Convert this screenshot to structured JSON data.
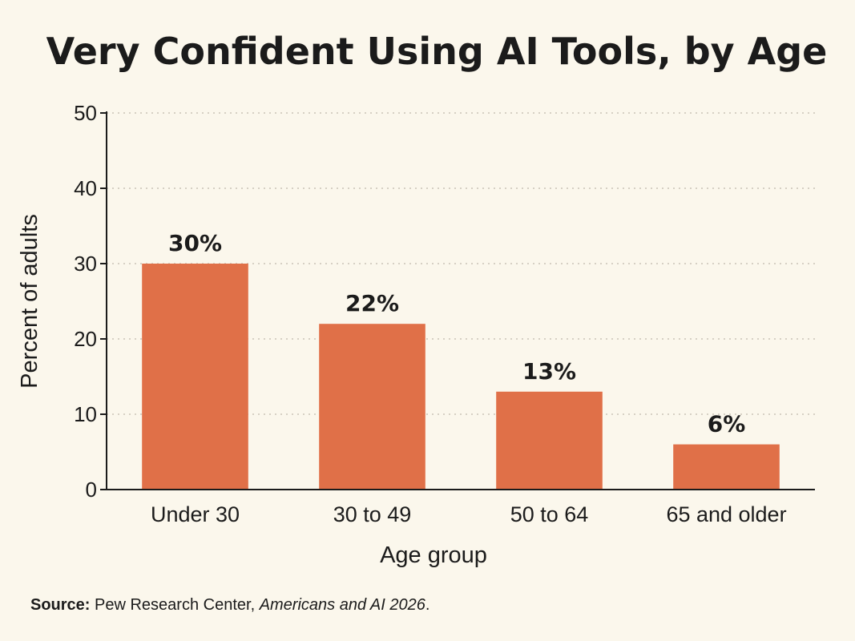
{
  "chart_data": {
    "type": "bar",
    "title": "Very Confident Using AI Tools, by Age",
    "xlabel": "Age group",
    "ylabel": "Percent of adults",
    "categories": [
      "Under 30",
      "30 to 49",
      "50 to 64",
      "65 and older"
    ],
    "values": [
      30,
      22,
      13,
      6
    ],
    "data_labels": [
      "30%",
      "22%",
      "13%",
      "6%"
    ],
    "ylim": [
      0,
      50
    ],
    "yticks": [
      0,
      10,
      20,
      30,
      40,
      50
    ],
    "grid": true,
    "bar_color": "#e07048"
  },
  "source": {
    "key": "Source:",
    "text": " Pew Research Center, ",
    "publication": "Americans and AI 2026",
    "end": "."
  }
}
